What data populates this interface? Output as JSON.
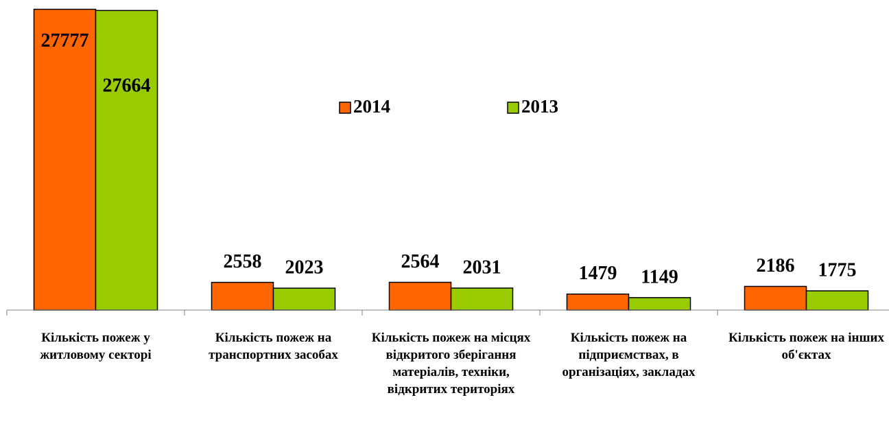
{
  "chart_data": {
    "type": "bar",
    "categories": [
      "Кількість пожеж у житловому секторі",
      "Кількість пожеж на транспортних засобах",
      "Кількість пожеж на місцях відкритого зберігання матеріалів, техніки, відкритих територіях",
      "Кількість пожеж на підприємствах, в організаціях, закладах",
      "Кількість пожеж на інших об'єктах"
    ],
    "series": [
      {
        "name": "2014",
        "color": "#ff6600",
        "values": [
          27777,
          2558,
          2564,
          1479,
          2186
        ]
      },
      {
        "name": "2013",
        "color": "#99cc00",
        "values": [
          27664,
          2023,
          2031,
          1149,
          1775
        ]
      }
    ],
    "ylim": [
      0,
      28000
    ],
    "grid": false,
    "legend": "top"
  }
}
